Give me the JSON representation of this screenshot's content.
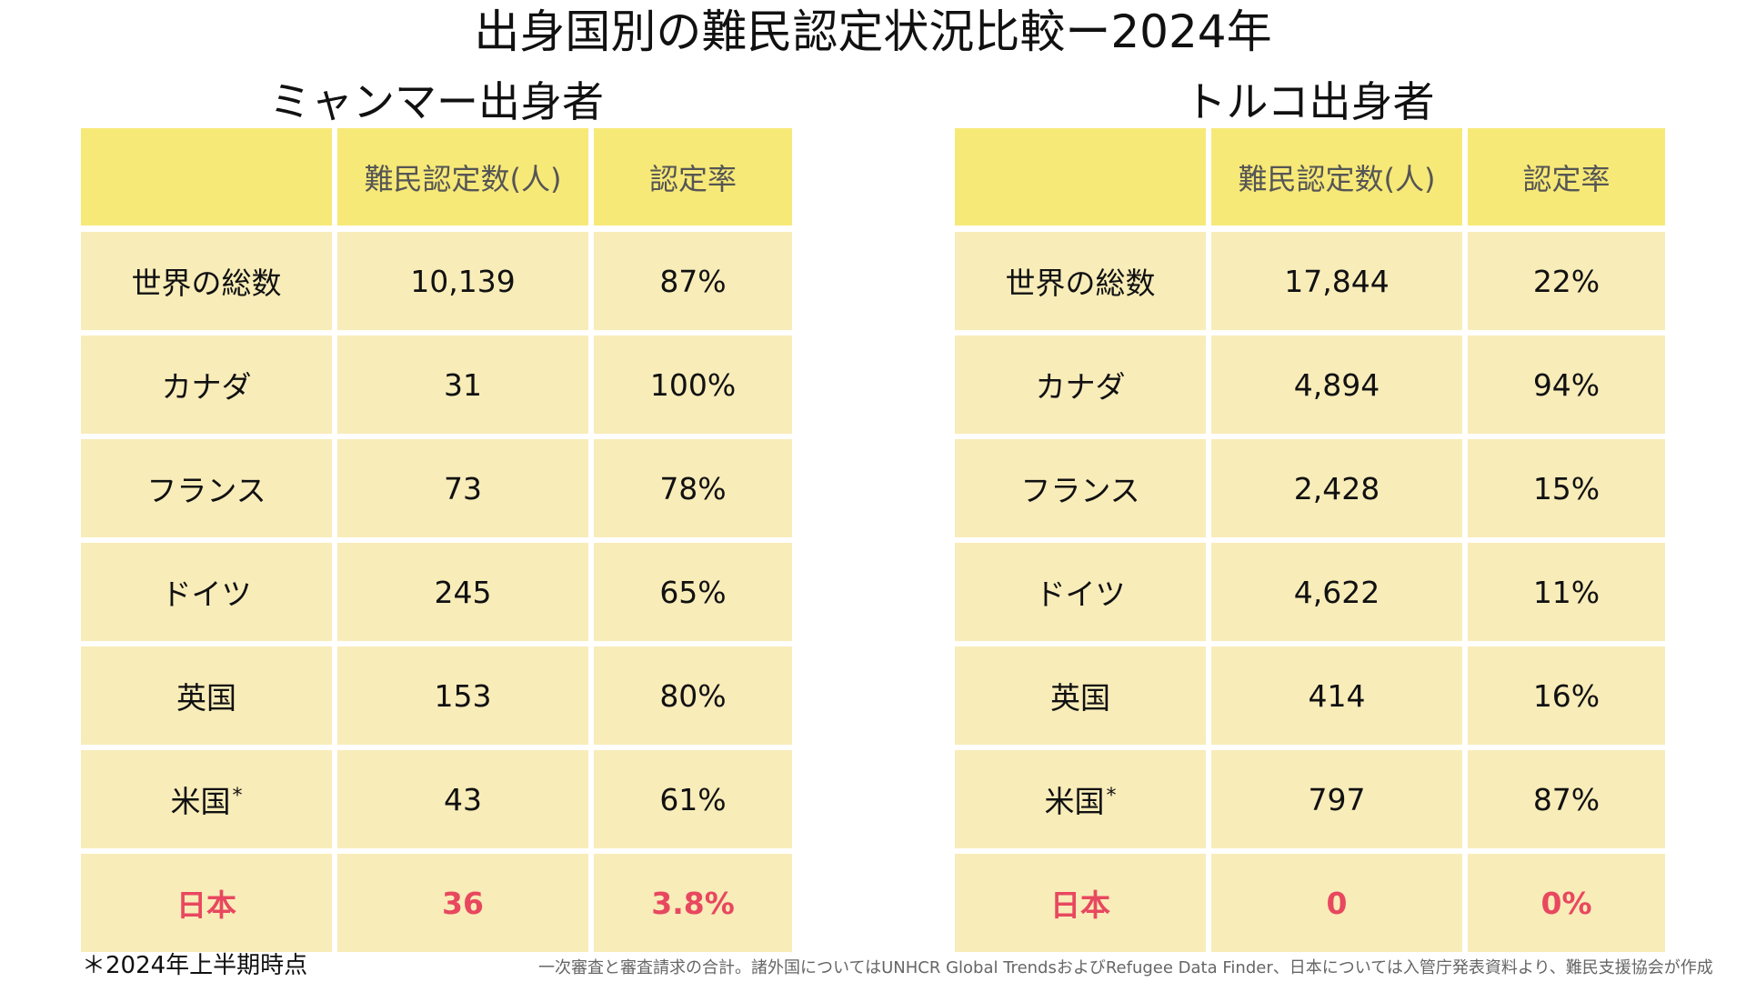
{
  "title": "出身国別の難民認定状況比較ー2024年",
  "colors": {
    "header_bg": "#f7e977",
    "cell_bg": "#f8ecb9",
    "highlight_text": "#e8485f"
  },
  "headers": {
    "blank": "",
    "count": "難民認定数(人)",
    "rate": "認定率"
  },
  "tables": [
    {
      "subtitle": "ミャンマー出身者",
      "rows": [
        {
          "country": "世界の総数",
          "mark": "",
          "count": "10,139",
          "rate": "87%"
        },
        {
          "country": "カナダ",
          "mark": "",
          "count": "31",
          "rate": "100%"
        },
        {
          "country": "フランス",
          "mark": "",
          "count": "73",
          "rate": "78%"
        },
        {
          "country": "ドイツ",
          "mark": "",
          "count": "245",
          "rate": "65%"
        },
        {
          "country": "英国",
          "mark": "",
          "count": "153",
          "rate": "80%"
        },
        {
          "country": "米国",
          "mark": "*",
          "count": "43",
          "rate": "61%"
        },
        {
          "country": "日本",
          "mark": "",
          "count": "36",
          "rate": "3.8%"
        }
      ]
    },
    {
      "subtitle": "トルコ出身者",
      "rows": [
        {
          "country": "世界の総数",
          "mark": "",
          "count": "17,844",
          "rate": "22%"
        },
        {
          "country": "カナダ",
          "mark": "",
          "count": "4,894",
          "rate": "94%"
        },
        {
          "country": "フランス",
          "mark": "",
          "count": "2,428",
          "rate": "15%"
        },
        {
          "country": "ドイツ",
          "mark": "",
          "count": "4,622",
          "rate": "11%"
        },
        {
          "country": "英国",
          "mark": "",
          "count": "414",
          "rate": "16%"
        },
        {
          "country": "米国",
          "mark": "*",
          "count": "797",
          "rate": "87%"
        },
        {
          "country": "日本",
          "mark": "",
          "count": "0",
          "rate": "0%"
        }
      ]
    }
  ],
  "footnote": "＊2024年上半期時点",
  "source": "一次審査と審査請求の合計。諸外国についてはUNHCR Global TrendsおよびRefugee Data Finder、日本については入管庁発表資料より、難民支援協会が作成"
}
